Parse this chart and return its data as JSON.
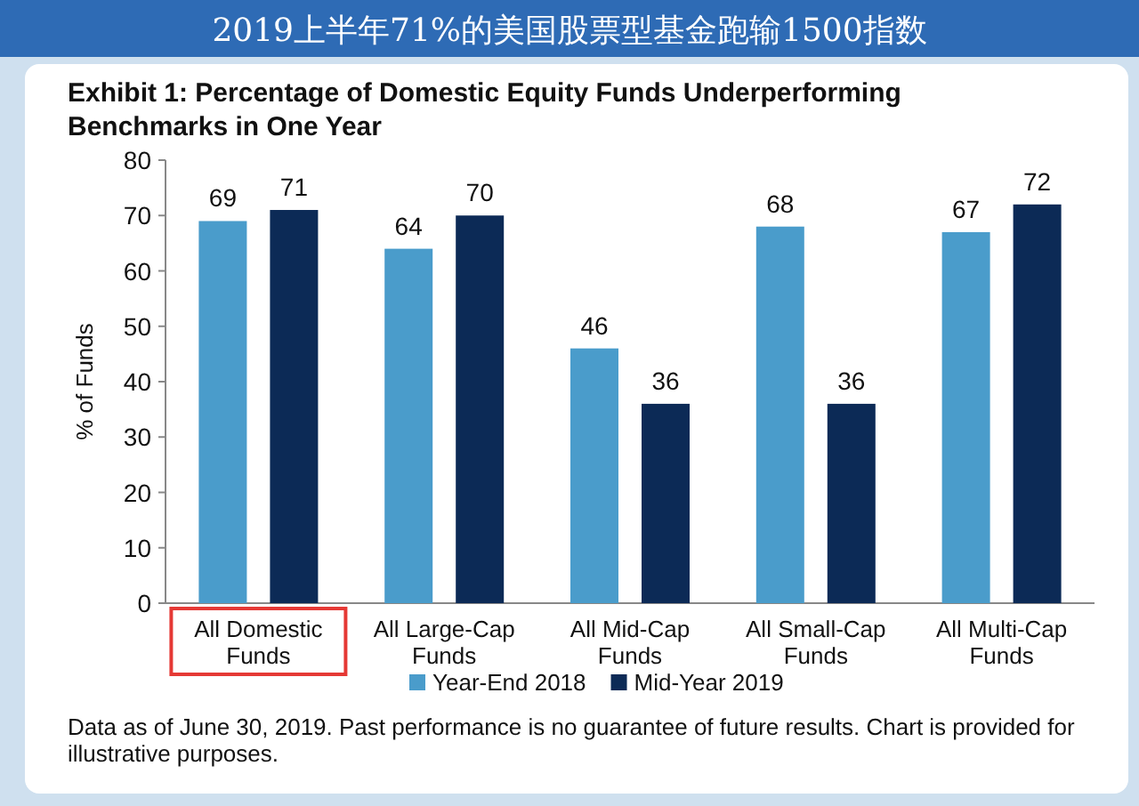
{
  "chart_data": {
    "type": "bar",
    "title": "2019上半年71%的美国股票型基金跑输1500指数",
    "subtitle": "Exhibit 1: Percentage of Domestic Equity Funds Underperforming Benchmarks in One Year",
    "ylabel": "% of Funds",
    "categories": [
      "All Domestic Funds",
      "All Large-Cap Funds",
      "All Mid-Cap Funds",
      "All Small-Cap Funds",
      "All Multi-Cap Funds"
    ],
    "series": [
      {
        "name": "Year-End 2018",
        "color": "#4a9ccb",
        "values": [
          69,
          64,
          46,
          68,
          67
        ]
      },
      {
        "name": "Mid-Year 2019",
        "color": "#0c2a56",
        "values": [
          71,
          70,
          36,
          36,
          72
        ]
      }
    ],
    "ylim": [
      0,
      80
    ],
    "yticks": [
      0,
      10,
      20,
      30,
      40,
      50,
      60,
      70,
      80
    ],
    "data_labels": true,
    "legend": "bottom",
    "grid": false,
    "annotations": [
      "Data as of June 30, 2019. Past performance is no guarantee of future results. Chart is provided for illustrative purposes."
    ]
  }
}
